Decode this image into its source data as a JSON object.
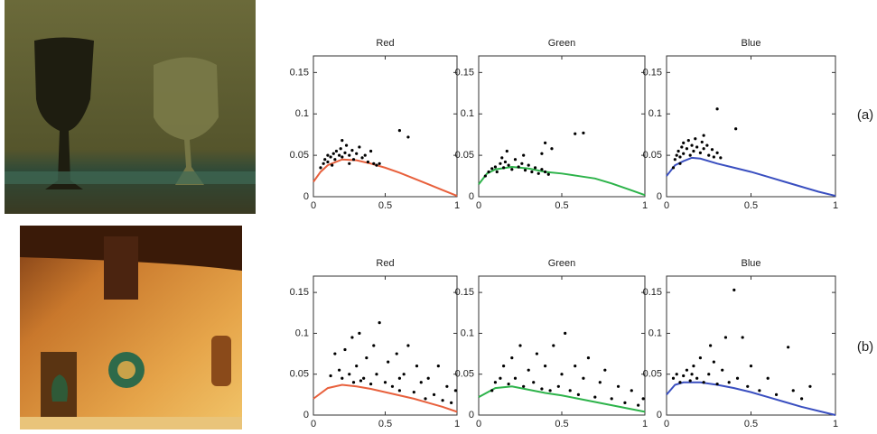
{
  "chart_data": [
    {
      "type": "scatter-line",
      "title": "Red",
      "xlim": [
        0,
        1
      ],
      "ylim": [
        0,
        0.17
      ],
      "xticks": [
        0,
        0.5,
        1
      ],
      "yticks": [
        0,
        0.05,
        0.1,
        0.15
      ],
      "series": [
        {
          "type": "line",
          "color": "#e8603c",
          "x": [
            0,
            0.05,
            0.1,
            0.2,
            0.3,
            0.4,
            0.5,
            0.6,
            0.7,
            0.8,
            0.9,
            1
          ],
          "values": [
            0.018,
            0.03,
            0.038,
            0.045,
            0.044,
            0.04,
            0.035,
            0.029,
            0.022,
            0.015,
            0.008,
            0.001
          ]
        },
        {
          "type": "scatter",
          "color": "#000000",
          "x": [
            0.05,
            0.07,
            0.08,
            0.1,
            0.1,
            0.12,
            0.14,
            0.15,
            0.16,
            0.18,
            0.19,
            0.2,
            0.22,
            0.23,
            0.25,
            0.27,
            0.28,
            0.3,
            0.32,
            0.34,
            0.36,
            0.38,
            0.4,
            0.42,
            0.44,
            0.46,
            0.2,
            0.6,
            0.66,
            0.13,
            0.25
          ],
          "values": [
            0.035,
            0.04,
            0.045,
            0.042,
            0.05,
            0.048,
            0.052,
            0.045,
            0.055,
            0.05,
            0.058,
            0.048,
            0.053,
            0.062,
            0.05,
            0.056,
            0.045,
            0.052,
            0.06,
            0.047,
            0.05,
            0.042,
            0.055,
            0.04,
            0.038,
            0.04,
            0.068,
            0.08,
            0.072,
            0.038,
            0.04
          ]
        }
      ]
    },
    {
      "type": "scatter-line",
      "title": "Green",
      "xlim": [
        0,
        1
      ],
      "ylim": [
        0,
        0.17
      ],
      "xticks": [
        0,
        0.5,
        1
      ],
      "yticks": [
        0,
        0.05,
        0.1,
        0.15
      ],
      "series": [
        {
          "type": "line",
          "color": "#2db34a",
          "x": [
            0,
            0.05,
            0.1,
            0.2,
            0.3,
            0.4,
            0.5,
            0.6,
            0.7,
            0.8,
            0.9,
            1
          ],
          "values": [
            0.015,
            0.028,
            0.033,
            0.036,
            0.034,
            0.03,
            0.028,
            0.025,
            0.022,
            0.016,
            0.009,
            0.002
          ]
        },
        {
          "type": "scatter",
          "color": "#000000",
          "x": [
            0.04,
            0.06,
            0.08,
            0.1,
            0.11,
            0.13,
            0.15,
            0.16,
            0.18,
            0.2,
            0.22,
            0.24,
            0.26,
            0.28,
            0.3,
            0.32,
            0.34,
            0.36,
            0.38,
            0.4,
            0.42,
            0.17,
            0.27,
            0.38,
            0.44,
            0.4,
            0.58,
            0.63,
            0.14
          ],
          "values": [
            0.025,
            0.03,
            0.034,
            0.036,
            0.03,
            0.04,
            0.035,
            0.042,
            0.038,
            0.033,
            0.045,
            0.036,
            0.04,
            0.032,
            0.038,
            0.03,
            0.035,
            0.028,
            0.033,
            0.03,
            0.027,
            0.055,
            0.05,
            0.052,
            0.058,
            0.065,
            0.076,
            0.077,
            0.047
          ]
        }
      ]
    },
    {
      "type": "scatter-line",
      "title": "Blue",
      "xlim": [
        0,
        1
      ],
      "ylim": [
        0,
        0.17
      ],
      "xticks": [
        0,
        0.5,
        1
      ],
      "yticks": [
        0,
        0.05,
        0.1,
        0.15
      ],
      "series": [
        {
          "type": "line",
          "color": "#3a4fc0",
          "x": [
            0,
            0.05,
            0.1,
            0.15,
            0.2,
            0.3,
            0.4,
            0.5,
            0.6,
            0.7,
            0.8,
            0.9,
            1
          ],
          "values": [
            0.025,
            0.038,
            0.043,
            0.047,
            0.046,
            0.04,
            0.035,
            0.03,
            0.024,
            0.018,
            0.012,
            0.006,
            0.001
          ]
        },
        {
          "type": "scatter",
          "color": "#000000",
          "x": [
            0.04,
            0.05,
            0.06,
            0.07,
            0.08,
            0.09,
            0.1,
            0.1,
            0.12,
            0.13,
            0.14,
            0.15,
            0.16,
            0.17,
            0.18,
            0.2,
            0.21,
            0.22,
            0.24,
            0.25,
            0.27,
            0.28,
            0.3,
            0.32,
            0.22,
            0.3,
            0.41,
            0.08
          ],
          "values": [
            0.035,
            0.045,
            0.05,
            0.055,
            0.048,
            0.06,
            0.052,
            0.065,
            0.058,
            0.068,
            0.05,
            0.062,
            0.055,
            0.07,
            0.06,
            0.053,
            0.066,
            0.058,
            0.062,
            0.05,
            0.057,
            0.048,
            0.053,
            0.047,
            0.074,
            0.106,
            0.082,
            0.04
          ]
        }
      ]
    },
    {
      "type": "scatter-line",
      "title": "Red",
      "xlim": [
        0,
        1
      ],
      "ylim": [
        0,
        0.17
      ],
      "xticks": [
        0,
        0.5,
        1
      ],
      "yticks": [
        0,
        0.05,
        0.1,
        0.15
      ],
      "series": [
        {
          "type": "line",
          "color": "#e8603c",
          "x": [
            0,
            0.1,
            0.2,
            0.3,
            0.4,
            0.5,
            0.6,
            0.7,
            0.8,
            0.9,
            1
          ],
          "values": [
            0.02,
            0.033,
            0.037,
            0.035,
            0.032,
            0.028,
            0.024,
            0.02,
            0.015,
            0.01,
            0.004
          ]
        },
        {
          "type": "scatter",
          "color": "#000000",
          "x": [
            0.15,
            0.18,
            0.2,
            0.22,
            0.25,
            0.27,
            0.28,
            0.3,
            0.32,
            0.35,
            0.37,
            0.4,
            0.42,
            0.44,
            0.46,
            0.5,
            0.52,
            0.55,
            0.58,
            0.6,
            0.63,
            0.66,
            0.7,
            0.72,
            0.75,
            0.78,
            0.8,
            0.84,
            0.87,
            0.9,
            0.93,
            0.96,
            0.99,
            0.12,
            0.33,
            0.6
          ],
          "values": [
            0.075,
            0.055,
            0.045,
            0.08,
            0.05,
            0.095,
            0.04,
            0.06,
            0.1,
            0.045,
            0.07,
            0.038,
            0.085,
            0.05,
            0.113,
            0.04,
            0.065,
            0.035,
            0.075,
            0.03,
            0.05,
            0.085,
            0.028,
            0.06,
            0.04,
            0.02,
            0.045,
            0.025,
            0.06,
            0.018,
            0.035,
            0.015,
            0.03,
            0.048,
            0.042,
            0.045
          ]
        }
      ]
    },
    {
      "type": "scatter-line",
      "title": "Green",
      "xlim": [
        0,
        1
      ],
      "ylim": [
        0,
        0.17
      ],
      "xticks": [
        0,
        0.5,
        1
      ],
      "yticks": [
        0,
        0.05,
        0.1,
        0.15
      ],
      "series": [
        {
          "type": "line",
          "color": "#2db34a",
          "x": [
            0,
            0.1,
            0.2,
            0.3,
            0.4,
            0.5,
            0.6,
            0.7,
            0.8,
            0.9,
            1
          ],
          "values": [
            0.022,
            0.033,
            0.035,
            0.031,
            0.027,
            0.024,
            0.02,
            0.016,
            0.012,
            0.008,
            0.004
          ]
        },
        {
          "type": "scatter",
          "color": "#000000",
          "x": [
            0.1,
            0.13,
            0.15,
            0.18,
            0.2,
            0.22,
            0.25,
            0.27,
            0.3,
            0.33,
            0.35,
            0.38,
            0.4,
            0.43,
            0.45,
            0.48,
            0.5,
            0.52,
            0.55,
            0.58,
            0.6,
            0.63,
            0.66,
            0.7,
            0.73,
            0.76,
            0.8,
            0.84,
            0.88,
            0.92,
            0.96,
            0.99,
            0.08
          ],
          "values": [
            0.04,
            0.045,
            0.06,
            0.038,
            0.07,
            0.045,
            0.085,
            0.035,
            0.055,
            0.04,
            0.075,
            0.032,
            0.06,
            0.03,
            0.085,
            0.035,
            0.05,
            0.1,
            0.03,
            0.06,
            0.025,
            0.045,
            0.07,
            0.022,
            0.04,
            0.055,
            0.02,
            0.035,
            0.015,
            0.03,
            0.012,
            0.02,
            0.03
          ]
        }
      ]
    },
    {
      "type": "scatter-line",
      "title": "Blue",
      "xlim": [
        0,
        1
      ],
      "ylim": [
        0,
        0.17
      ],
      "xticks": [
        0,
        0.5,
        1
      ],
      "yticks": [
        0,
        0.05,
        0.1,
        0.15
      ],
      "series": [
        {
          "type": "line",
          "color": "#3a4fc0",
          "x": [
            0,
            0.05,
            0.1,
            0.2,
            0.3,
            0.4,
            0.5,
            0.6,
            0.7,
            0.8,
            0.9,
            1
          ],
          "values": [
            0.025,
            0.037,
            0.04,
            0.04,
            0.037,
            0.033,
            0.028,
            0.022,
            0.016,
            0.01,
            0.005,
            0
          ]
        },
        {
          "type": "scatter",
          "color": "#000000",
          "x": [
            0.04,
            0.06,
            0.08,
            0.1,
            0.12,
            0.14,
            0.16,
            0.18,
            0.2,
            0.22,
            0.25,
            0.28,
            0.3,
            0.33,
            0.35,
            0.37,
            0.4,
            0.42,
            0.45,
            0.48,
            0.5,
            0.55,
            0.6,
            0.65,
            0.72,
            0.75,
            0.8,
            0.85,
            0.26,
            0.15
          ],
          "values": [
            0.045,
            0.05,
            0.04,
            0.048,
            0.055,
            0.042,
            0.06,
            0.045,
            0.07,
            0.04,
            0.05,
            0.065,
            0.038,
            0.055,
            0.095,
            0.04,
            0.153,
            0.045,
            0.095,
            0.035,
            0.06,
            0.03,
            0.045,
            0.025,
            0.083,
            0.03,
            0.02,
            0.035,
            0.085,
            0.05
          ]
        }
      ]
    }
  ],
  "row_labels": [
    "(a)",
    "(b)"
  ]
}
